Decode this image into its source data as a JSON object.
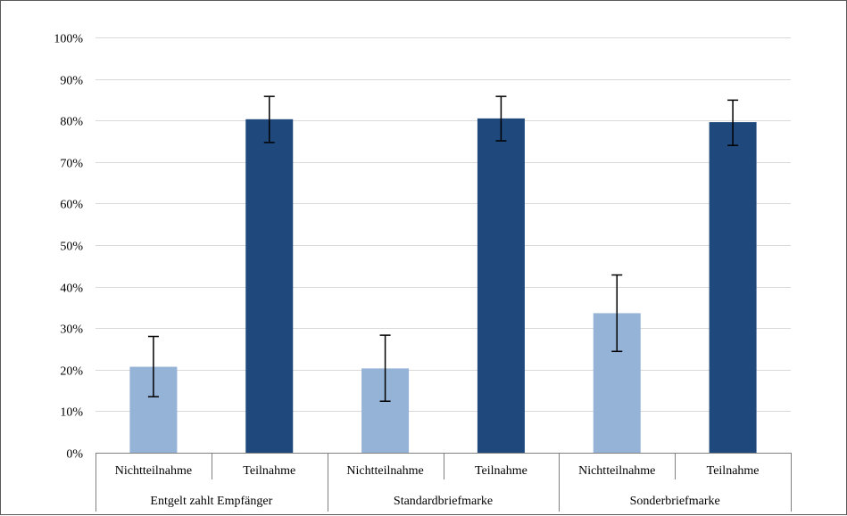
{
  "chart_data": {
    "type": "bar",
    "title": "",
    "xlabel": "",
    "ylabel": "",
    "ylim": [
      0,
      100
    ],
    "yticks": [
      0,
      10,
      20,
      30,
      40,
      50,
      60,
      70,
      80,
      90,
      100
    ],
    "ytick_format": "percent",
    "grid": true,
    "legend": "none",
    "groups": [
      {
        "label": "Entgelt zahlt Empfänger",
        "categories": [
          "Nichtteilnahme",
          "Teilnahme"
        ]
      },
      {
        "label": "Standardbriefmarke",
        "categories": [
          "Nichtteilnahme",
          "Teilnahme"
        ]
      },
      {
        "label": "Sonderbriefmarke",
        "categories": [
          "Nichtteilnahme",
          "Teilnahme"
        ]
      }
    ],
    "bars": [
      {
        "group": 0,
        "category": "Nichtteilnahme",
        "value": 20.7,
        "err_low": 13.5,
        "err_high": 28.0,
        "color": "#95b3d7"
      },
      {
        "group": 0,
        "category": "Teilnahme",
        "value": 80.3,
        "err_low": 74.7,
        "err_high": 85.8,
        "color": "#1f497d"
      },
      {
        "group": 1,
        "category": "Nichtteilnahme",
        "value": 20.3,
        "err_low": 12.4,
        "err_high": 28.3,
        "color": "#95b3d7"
      },
      {
        "group": 1,
        "category": "Teilnahme",
        "value": 80.5,
        "err_low": 75.1,
        "err_high": 85.8,
        "color": "#1f497d"
      },
      {
        "group": 2,
        "category": "Nichtteilnahme",
        "value": 33.6,
        "err_low": 24.4,
        "err_high": 42.8,
        "color": "#95b3d7"
      },
      {
        "group": 2,
        "category": "Teilnahme",
        "value": 79.6,
        "err_low": 74.0,
        "err_high": 84.9,
        "color": "#1f497d"
      }
    ]
  },
  "colors": {
    "light_bar": "#95b3d7",
    "dark_bar": "#1f497d",
    "gridline": "#d9d9d9",
    "axis": "#808080"
  }
}
